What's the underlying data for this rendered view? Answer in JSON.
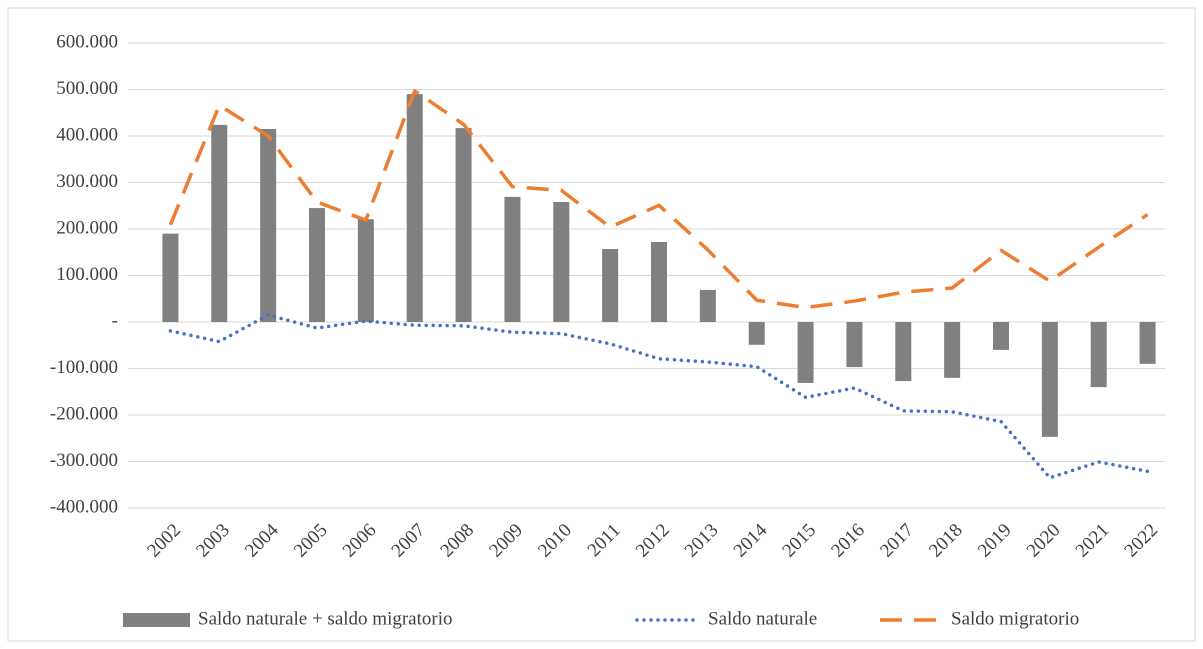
{
  "chart_data": {
    "type": "bar-line",
    "categories": [
      "2002",
      "2003",
      "2004",
      "2005",
      "2006",
      "2007",
      "2008",
      "2009",
      "2010",
      "2011",
      "2012",
      "2013",
      "2014",
      "2015",
      "2016",
      "2017",
      "2018",
      "2019",
      "2020",
      "2021",
      "2022"
    ],
    "series": [
      {
        "name": "Saldo naturale + saldo migratorio",
        "type": "bar",
        "color": "#808080",
        "values": [
          190000,
          424000,
          415000,
          245000,
          221000,
          490000,
          417000,
          269000,
          258000,
          157000,
          172000,
          69000,
          -49000,
          -131000,
          -97000,
          -127000,
          -120000,
          -60000,
          -247000,
          -140000,
          -90000
        ]
      },
      {
        "name": "Saldo naturale",
        "type": "line",
        "style": "dotted",
        "color": "#4472c4",
        "values": [
          -19000,
          -42000,
          15000,
          -13000,
          2000,
          -7000,
          -8000,
          -22000,
          -25000,
          -47000,
          -79000,
          -86000,
          -96000,
          -162000,
          -142000,
          -191000,
          -193000,
          -214000,
          -335000,
          -301000,
          -321000
        ]
      },
      {
        "name": "Saldo migratorio",
        "type": "line",
        "style": "dashed",
        "color": "#ed7d31",
        "values": [
          209000,
          466000,
          400000,
          258000,
          219000,
          497000,
          425000,
          291000,
          283000,
          204000,
          251000,
          155000,
          47000,
          31000,
          45000,
          64000,
          73000,
          154000,
          88000,
          161000,
          231000
        ]
      }
    ],
    "ylim": [
      -400000,
      600000
    ],
    "yticks": [
      {
        "value": -400000,
        "label": "-400.000"
      },
      {
        "value": -300000,
        "label": "-300.000"
      },
      {
        "value": -200000,
        "label": "-200.000"
      },
      {
        "value": -100000,
        "label": "-100.000"
      },
      {
        "value": 0,
        "label": "-"
      },
      {
        "value": 100000,
        "label": "100.000"
      },
      {
        "value": 200000,
        "label": "200.000"
      },
      {
        "value": 300000,
        "label": "300.000"
      },
      {
        "value": 400000,
        "label": "400.000"
      },
      {
        "value": 500000,
        "label": "500.000"
      },
      {
        "value": 600000,
        "label": "600.000"
      }
    ],
    "grid": true,
    "legend": "bottom"
  }
}
